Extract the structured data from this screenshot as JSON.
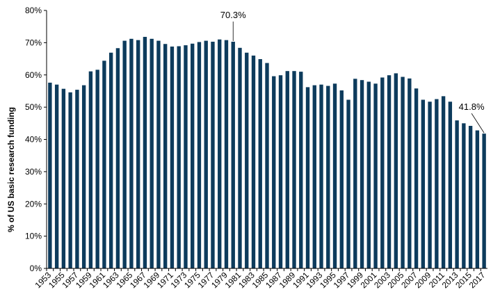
{
  "chart_data": {
    "type": "bar",
    "title": "",
    "xlabel": "",
    "ylabel": "% of US basic research funding",
    "ylim": [
      0,
      80
    ],
    "yticks": [
      "0%",
      "10%",
      "20%",
      "30%",
      "40%",
      "50%",
      "60%",
      "70%",
      "80%"
    ],
    "bar_color": "#0d3b5c",
    "years": [
      1953,
      1954,
      1955,
      1956,
      1957,
      1958,
      1959,
      1960,
      1961,
      1962,
      1963,
      1964,
      1965,
      1966,
      1967,
      1968,
      1969,
      1970,
      1971,
      1972,
      1973,
      1974,
      1975,
      1976,
      1977,
      1978,
      1979,
      1980,
      1981,
      1982,
      1983,
      1984,
      1985,
      1986,
      1987,
      1988,
      1989,
      1990,
      1991,
      1992,
      1993,
      1994,
      1995,
      1996,
      1997,
      1998,
      1999,
      2000,
      2001,
      2002,
      2003,
      2004,
      2005,
      2006,
      2007,
      2008,
      2009,
      2010,
      2011,
      2012,
      2013,
      2014,
      2015,
      2016,
      2017
    ],
    "values": [
      57.6,
      57.0,
      55.7,
      54.6,
      55.4,
      56.8,
      61.1,
      61.6,
      64.4,
      66.9,
      68.3,
      70.6,
      71.2,
      70.8,
      71.8,
      71.2,
      70.6,
      69.6,
      68.8,
      68.9,
      69.2,
      69.7,
      70.2,
      70.6,
      70.3,
      71.0,
      70.8,
      70.3,
      68.4,
      66.9,
      66.0,
      64.9,
      63.7,
      59.6,
      59.9,
      61.2,
      61.2,
      61.0,
      56.2,
      56.8,
      57.0,
      56.6,
      57.3,
      55.2,
      52.3,
      58.8,
      58.4,
      57.9,
      57.3,
      59.2,
      59.9,
      60.5,
      59.4,
      58.9,
      55.8,
      52.3,
      51.7,
      52.5,
      53.4,
      51.7,
      45.9,
      45.0,
      44.2,
      42.8,
      41.8
    ],
    "annotations": [
      {
        "year": 1980,
        "text": "70.3%"
      },
      {
        "year": 2017,
        "text": "41.8%"
      }
    ]
  }
}
